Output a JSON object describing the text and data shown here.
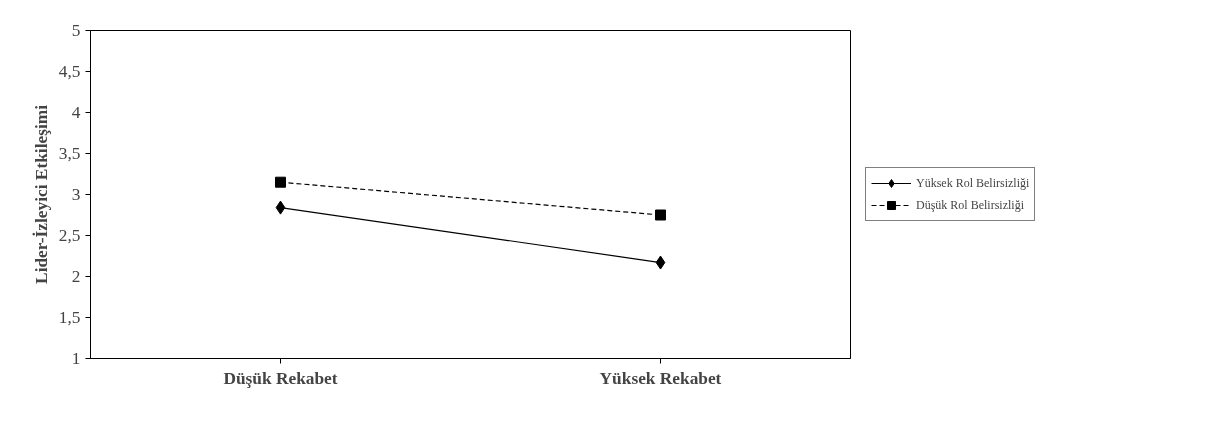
{
  "chart_data": {
    "type": "line",
    "ylabel": "Lider-İzleyici Etkileşimi",
    "categories": [
      "Düşük Rekabet",
      "Yüksek Rekabet"
    ],
    "series": [
      {
        "name": "Yüksek Rol Belirsizliği",
        "color": "#000000",
        "values": [
          2.84,
          2.17
        ],
        "marker": "diamond",
        "line_style": "solid"
      },
      {
        "name": "Düşük Rol Belirsizliği",
        "color": "#000000",
        "values": [
          3.15,
          2.75
        ],
        "marker": "square",
        "line_style": "dashed"
      }
    ],
    "ylim": [
      1,
      5
    ],
    "yticks": [
      1,
      {
        "value": 1.5,
        "label": "1,5"
      },
      2,
      {
        "value": 2.5,
        "label": "2,5"
      },
      3,
      {
        "value": 3.5,
        "label": "3,5"
      },
      4,
      {
        "value": 4.5,
        "label": "4,5"
      },
      5
    ],
    "grid": false,
    "legend": "right"
  }
}
